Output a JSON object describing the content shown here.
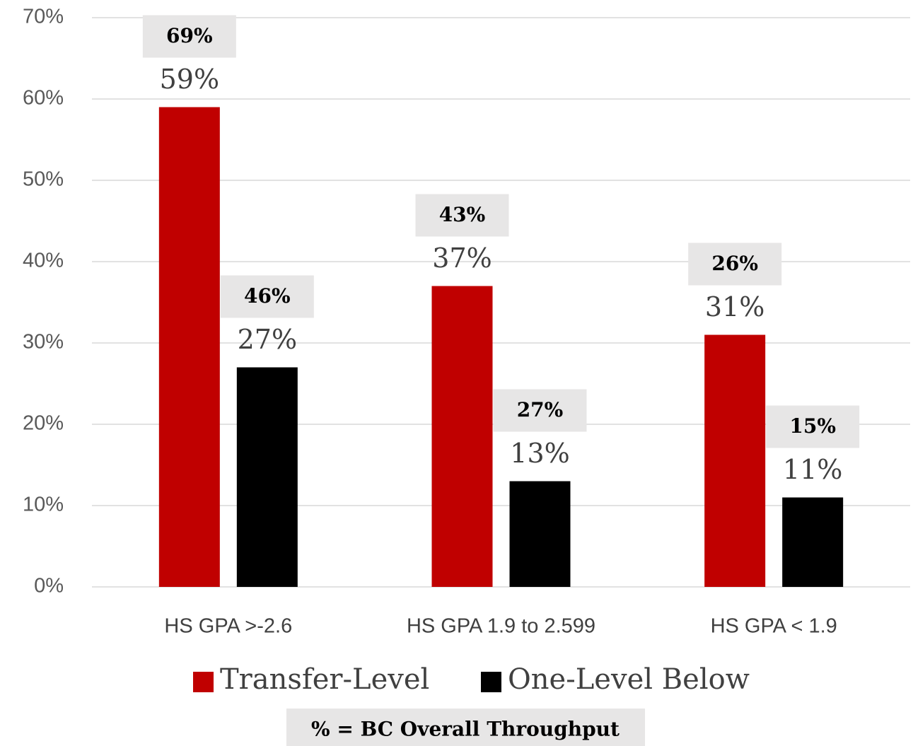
{
  "chart_data": {
    "type": "bar",
    "categories": [
      "HS GPA >-2.6",
      "HS GPA 1.9 to 2.599",
      "HS GPA < 1.9"
    ],
    "series": [
      {
        "name": "Transfer-Level",
        "color": "#c00000",
        "values": [
          59,
          37,
          31
        ],
        "value_labels": [
          "59%",
          "37%",
          "31%"
        ],
        "overall_values": [
          69,
          43,
          26
        ],
        "overall_labels": [
          "69%",
          "43%",
          "26%"
        ]
      },
      {
        "name": "One-Level Below",
        "color": "#000000",
        "values": [
          27,
          13,
          11
        ],
        "value_labels": [
          "27%",
          "13%",
          "11%"
        ],
        "overall_values": [
          46,
          27,
          15
        ],
        "overall_labels": [
          "46%",
          "27%",
          "15%"
        ]
      }
    ],
    "ylim": [
      0,
      70
    ],
    "yticks": [
      {
        "value": 0,
        "label": "0%"
      },
      {
        "value": 10,
        "label": "10%"
      },
      {
        "value": 20,
        "label": "20%"
      },
      {
        "value": 30,
        "label": "30%"
      },
      {
        "value": 40,
        "label": "40%"
      },
      {
        "value": 50,
        "label": "50%"
      },
      {
        "value": 60,
        "label": "60%"
      },
      {
        "value": 70,
        "label": "70%"
      }
    ],
    "grid": true,
    "legend": "bottom",
    "footnote": "% = BC Overall Throughput"
  }
}
